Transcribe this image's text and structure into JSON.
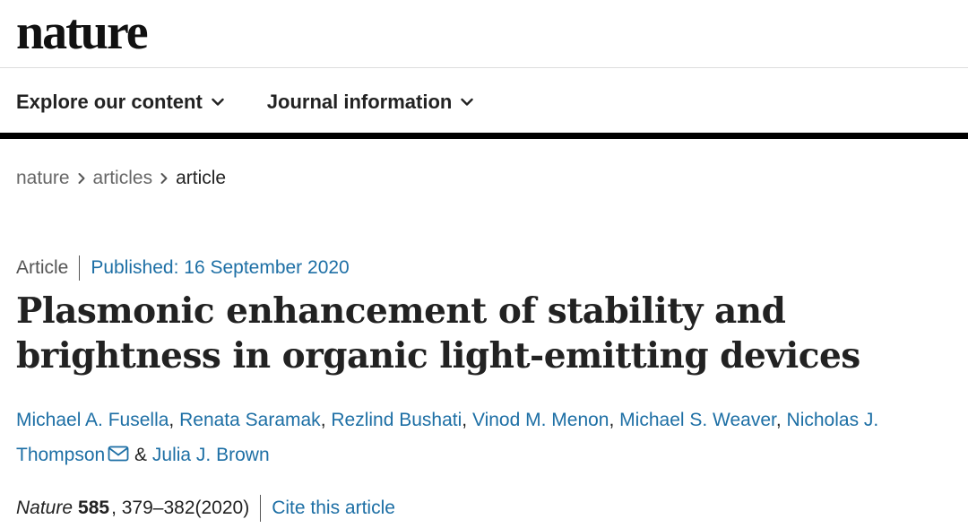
{
  "header": {
    "logo_text": "nature",
    "nav": [
      {
        "label": "Explore our content"
      },
      {
        "label": "Journal information"
      }
    ]
  },
  "breadcrumb": [
    {
      "label": "nature"
    },
    {
      "label": "articles"
    },
    {
      "label": "article"
    }
  ],
  "article": {
    "type": "Article",
    "published": "Published: 16 September 2020",
    "title": "Plasmonic enhancement of stability and brightness in organic light-emitting devices",
    "authors": [
      "Michael A. Fusella",
      "Renata Saramak",
      "Rezlind Bushati",
      "Vinod M. Menon",
      "Michael S. Weaver",
      "Nicholas J. Thompson",
      "Julia J. Brown"
    ],
    "author_separator": ", ",
    "author_and": " & ",
    "citation": {
      "journal": "Nature",
      "volume": "585",
      "pages": ", 379–382(2020)",
      "cite_link": "Cite this article"
    }
  },
  "icons": {
    "chevron": "chevron-down-icon",
    "crumb_sep": "chevron-right-icon",
    "mail": "mail-icon"
  },
  "colors": {
    "link": "#1d6fa5",
    "text": "#222222",
    "muted": "#666666"
  }
}
